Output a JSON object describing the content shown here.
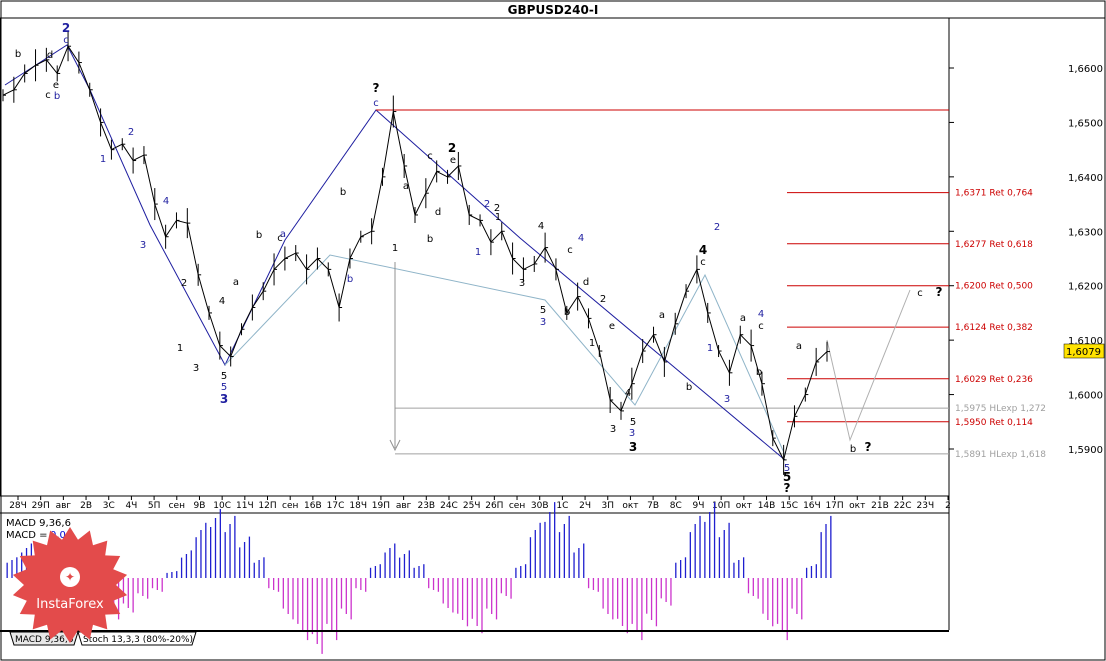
{
  "chart_data": {
    "type": "line",
    "title": "GBPUSD240-I",
    "symbol_price": "1,6079",
    "y_axis": {
      "ylim": [
        1.58,
        1.671
      ],
      "ticks": [
        "1,6600",
        "1,6500",
        "1,6400",
        "1,6300",
        "1,6200",
        "1,6100",
        "1,6000",
        "1,5900"
      ],
      "tick_values": [
        1.66,
        1.65,
        1.64,
        1.63,
        1.62,
        1.61,
        1.6,
        1.59
      ]
    },
    "x_ticks": [
      "28Ч",
      "29П",
      "авг",
      "2В",
      "3С",
      "4Ч",
      "5П",
      "сен",
      "9В",
      "10С",
      "11Ч",
      "12П",
      "сен",
      "16В",
      "17С",
      "18Ч",
      "19П",
      "авг",
      "23В",
      "24С",
      "25Ч",
      "26П",
      "сен",
      "30В",
      "1С",
      "2Ч",
      "3П",
      "окт",
      "7В",
      "8С",
      "9Ч",
      "10П",
      "окт",
      "14В",
      "15С",
      "16Ч",
      "17П",
      "окт",
      "21В",
      "22С",
      "23Ч",
      "2"
    ],
    "price_series": [
      1.655,
      1.656,
      1.659,
      1.6605,
      1.6615,
      1.659,
      1.664,
      1.661,
      1.656,
      1.65,
      1.645,
      1.646,
      1.643,
      1.644,
      1.635,
      1.629,
      1.632,
      1.6315,
      1.622,
      1.615,
      1.609,
      1.607,
      1.612,
      1.616,
      1.619,
      1.623,
      1.625,
      1.626,
      1.623,
      1.625,
      1.623,
      1.616,
      1.625,
      1.629,
      1.63,
      1.64,
      1.652,
      1.642,
      1.633,
      1.637,
      1.641,
      1.64,
      1.642,
      1.633,
      1.632,
      1.628,
      1.63,
      1.625,
      1.623,
      1.624,
      1.627,
      1.623,
      1.615,
      1.618,
      1.614,
      1.608,
      1.599,
      1.597,
      1.602,
      1.608,
      1.611,
      1.606,
      1.613,
      1.619,
      1.623,
      1.615,
      1.608,
      1.604,
      1.611,
      1.609,
      1.602,
      1.592,
      1.588,
      1.596,
      1.6,
      1.606,
      1.6079
    ],
    "retracement_levels": [
      {
        "label": "1,6371 Ret 0,764",
        "value": 1.6371
      },
      {
        "label": "1,6277 Ret 0,618",
        "value": 1.6277
      },
      {
        "label": "1,6200 Ret 0,500",
        "value": 1.62
      },
      {
        "label": "1,6124 Ret 0,382",
        "value": 1.6124
      },
      {
        "label": "1,6029 Ret 0,236",
        "value": 1.6029
      },
      {
        "label": "1,5950 Ret 0,114",
        "value": 1.595
      }
    ],
    "extension_levels": [
      {
        "label": "1,5975 HLexp 1,272",
        "value": 1.5975
      },
      {
        "label": "1,5891 HLexp 1,618",
        "value": 1.5891
      }
    ],
    "wave_labels": [
      {
        "t": "2",
        "bold": true,
        "color": "blue"
      },
      {
        "t": "c",
        "color": "blue"
      },
      {
        "t": "b"
      },
      {
        "t": "d"
      },
      {
        "t": "e"
      },
      {
        "t": "c"
      },
      {
        "t": "b",
        "color": "blue"
      },
      {
        "t": "1",
        "color": "blue"
      },
      {
        "t": "2",
        "color": "blue"
      },
      {
        "t": "3",
        "color": "blue"
      },
      {
        "t": "4",
        "color": "blue"
      },
      {
        "t": "1"
      },
      {
        "t": "2"
      },
      {
        "t": "3"
      },
      {
        "t": "4"
      },
      {
        "t": "5"
      },
      {
        "t": "5",
        "color": "blue"
      },
      {
        "t": "3",
        "bold": true,
        "color": "blue"
      },
      {
        "t": "a",
        "color": "blue"
      },
      {
        "t": "a"
      },
      {
        "t": "b"
      },
      {
        "t": "c"
      },
      {
        "t": "b",
        "color": "blue"
      },
      {
        "t": "?",
        "bold": true
      },
      {
        "t": "c",
        "color": "blue"
      },
      {
        "t": "a"
      },
      {
        "t": "b"
      },
      {
        "t": "c"
      },
      {
        "t": "d"
      },
      {
        "t": "e"
      },
      {
        "t": "2",
        "bold": true
      },
      {
        "t": "1"
      },
      {
        "t": "b"
      },
      {
        "t": "2",
        "color": "blue"
      },
      {
        "t": "1",
        "color": "blue"
      },
      {
        "t": "1"
      },
      {
        "t": "2"
      },
      {
        "t": "3"
      },
      {
        "t": "4"
      },
      {
        "t": "5"
      },
      {
        "t": "3",
        "color": "blue"
      },
      {
        "t": "c"
      },
      {
        "t": "4",
        "color": "blue"
      },
      {
        "t": "b"
      },
      {
        "t": "d"
      },
      {
        "t": "e"
      },
      {
        "t": "1"
      },
      {
        "t": "2"
      },
      {
        "t": "3"
      },
      {
        "t": "4"
      },
      {
        "t": "5"
      },
      {
        "t": "3",
        "color": "blue"
      },
      {
        "t": "3",
        "bold": true
      },
      {
        "t": "a"
      },
      {
        "t": "b"
      },
      {
        "t": "4",
        "bold": true
      },
      {
        "t": "c"
      },
      {
        "t": "2",
        "color": "blue"
      },
      {
        "t": "1",
        "color": "blue"
      },
      {
        "t": "3",
        "color": "blue"
      },
      {
        "t": "a"
      },
      {
        "t": "c"
      },
      {
        "t": "4",
        "color": "blue"
      },
      {
        "t": "b"
      },
      {
        "t": "a"
      },
      {
        "t": "5",
        "color": "blue"
      },
      {
        "t": "5",
        "bold": true
      },
      {
        "t": "?",
        "bold": true
      },
      {
        "t": "c"
      },
      {
        "t": "?",
        "bold": true
      },
      {
        "t": "b"
      },
      {
        "t": "?",
        "bold": true
      }
    ]
  },
  "indicator": {
    "macd_label": "MACD 9,36,6",
    "macd_value_prefix": "MACD = ",
    "macd_value": "0,00",
    "histogram": [
      0.3,
      0.5,
      0.4,
      0.2,
      -0.1,
      -0.3,
      -0.5,
      -0.6,
      -0.5,
      -0.3,
      -0.2,
      0.1,
      0.4,
      0.8,
      1.0,
      0.9,
      0.6,
      0.3,
      -0.2,
      -0.6,
      -0.9,
      -1.1,
      -0.9,
      -0.6,
      -0.2,
      0.2,
      0.5,
      0.4,
      0.2,
      -0.2,
      -0.5,
      -0.7,
      -0.8,
      -0.6,
      -0.3,
      0.2,
      0.8,
      1.1,
      0.9,
      0.5,
      -0.2,
      -0.6,
      -0.8,
      -0.9,
      -0.7,
      -0.4,
      0.3,
      0.9,
      1.1,
      0.8,
      0.3,
      -0.3,
      -0.7,
      -0.9,
      -0.6,
      0.2,
      0.9
    ]
  },
  "tabs": [
    "MACD 9,36,6",
    "Stoch 13,3,3 (80%-20%)"
  ],
  "logo": {
    "text": "InstaForex"
  }
}
